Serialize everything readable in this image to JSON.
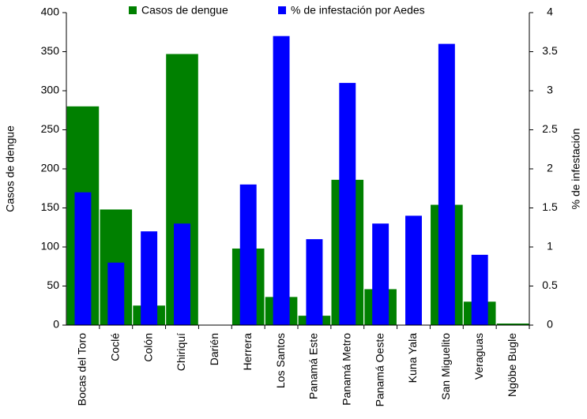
{
  "chart_data": {
    "type": "bar",
    "categories": [
      "Bocas del Toro",
      "Coclé",
      "Colón",
      "Chiriquí",
      "Darién",
      "Herrera",
      "Los Santos",
      "Panamá Este",
      "Panamá Metro",
      "Panamá Oeste",
      "Kuna Yala",
      "San Miguelito",
      "Veraguas",
      "Ngöbe Bugle"
    ],
    "series": [
      {
        "name": "Casos de dengue",
        "color": "#008000",
        "values": [
          280,
          148,
          25,
          347,
          0,
          98,
          36,
          12,
          186,
          46,
          0,
          154,
          30,
          2
        ]
      },
      {
        "name": "% de infestación por Aedes",
        "color": "#0000ff",
        "axis": "y2",
        "values": [
          1.7,
          0.8,
          1.2,
          1.3,
          0,
          1.8,
          3.7,
          1.1,
          3.1,
          1.3,
          1.4,
          3.6,
          0.9,
          0
        ]
      }
    ],
    "ylabel": "Casos de dengue",
    "y2label": "% de infestación",
    "ylim": [
      0,
      400
    ],
    "yticks": [
      0,
      50,
      100,
      150,
      200,
      250,
      300,
      350,
      400
    ],
    "y2lim": [
      0,
      4
    ],
    "y2ticks": [
      0,
      0.5,
      1,
      1.5,
      2,
      2.5,
      3,
      3.5,
      4
    ],
    "legend": "top",
    "grid": false
  }
}
